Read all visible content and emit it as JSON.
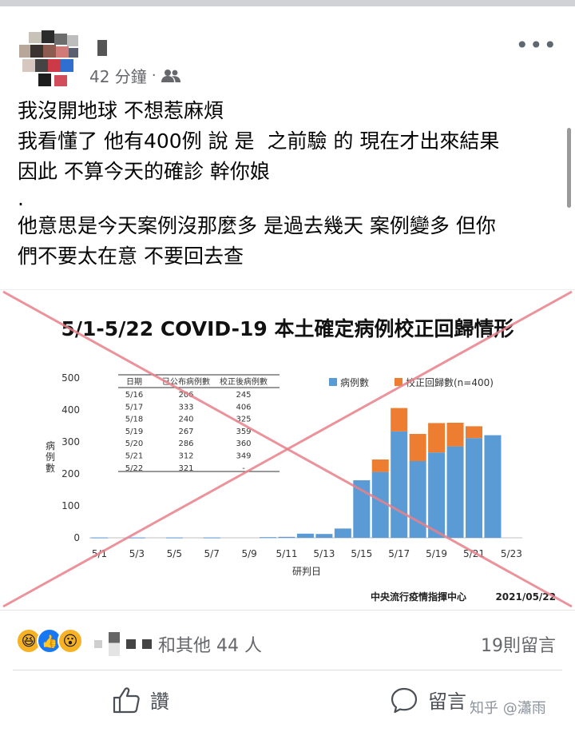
{
  "post": {
    "timestamp": "42 分鐘",
    "audience_icon": "friends-icon",
    "lines": [
      "我沒開地球 不想惹麻煩",
      "我看懂了 他有400例 說 是  之前驗 的 現在才出來結果",
      "因此 不算今天的確診 幹你娘",
      ".",
      "他意思是今天案例沒那麼多 是過去幾天 案例變多 但你",
      "們不要太在意 不要回去查"
    ]
  },
  "chart": {
    "title": "5/1-5/22 COVID-19 本土確定病例校正回歸情形",
    "ylabel": "病例數",
    "xlabel": "研判日",
    "legend": [
      "病例數",
      "校正回歸數(n=400)"
    ],
    "source": "中央流行疫情指揮中心",
    "date": "2021/05/22",
    "colors": {
      "cases": "#5b9bd5",
      "correction": "#ed7d31",
      "cross": "#e8808a"
    },
    "table": {
      "headers": [
        "日期",
        "已公布病例數",
        "校正後病例數"
      ],
      "rows": [
        [
          "5/16",
          "206",
          "245"
        ],
        [
          "5/17",
          "333",
          "406"
        ],
        [
          "5/18",
          "240",
          "325"
        ],
        [
          "5/19",
          "267",
          "359"
        ],
        [
          "5/20",
          "286",
          "360"
        ],
        [
          "5/21",
          "312",
          "349"
        ],
        [
          "5/22",
          "321",
          "-"
        ]
      ]
    }
  },
  "chart_data": {
    "type": "bar",
    "title": "5/1-5/22 COVID-19 本土確定病例校正回歸情形",
    "xlabel": "研判日",
    "ylabel": "病例數",
    "ylim": [
      0,
      500
    ],
    "yticks": [
      0,
      100,
      200,
      300,
      400,
      500
    ],
    "categories": [
      "5/1",
      "5/2",
      "5/3",
      "5/4",
      "5/5",
      "5/6",
      "5/7",
      "5/8",
      "5/9",
      "5/10",
      "5/11",
      "5/12",
      "5/13",
      "5/14",
      "5/15",
      "5/16",
      "5/17",
      "5/18",
      "5/19",
      "5/20",
      "5/21",
      "5/22",
      "5/23"
    ],
    "xtick_labels": [
      "5/1",
      "5/3",
      "5/5",
      "5/7",
      "5/9",
      "5/11",
      "5/13",
      "5/15",
      "5/17",
      "5/19",
      "5/21",
      "5/23"
    ],
    "stacked": true,
    "series": [
      {
        "name": "病例數",
        "values": [
          1,
          0,
          1,
          0,
          1,
          0,
          1,
          0,
          0,
          2,
          3,
          13,
          12,
          29,
          180,
          206,
          333,
          240,
          267,
          286,
          312,
          321,
          0
        ]
      },
      {
        "name": "校正回歸數(n=400)",
        "values": [
          0,
          0,
          0,
          0,
          0,
          0,
          0,
          0,
          0,
          0,
          0,
          0,
          0,
          0,
          0,
          39,
          73,
          85,
          92,
          74,
          37,
          0,
          0
        ]
      }
    ],
    "legend_position": "top-right",
    "grid": false
  },
  "engagement": {
    "reactions": [
      {
        "icon": "haha-reaction-icon",
        "glyph": "😆"
      },
      {
        "icon": "like-reaction-icon",
        "glyph": "👍"
      },
      {
        "icon": "wow-reaction-icon",
        "glyph": "😮"
      }
    ],
    "reactors_text": "和其他 44 人",
    "comments_count": "19則留言"
  },
  "actions": {
    "like_label": "讚",
    "comment_label": "留言"
  },
  "watermark": "知乎 @瀟雨"
}
